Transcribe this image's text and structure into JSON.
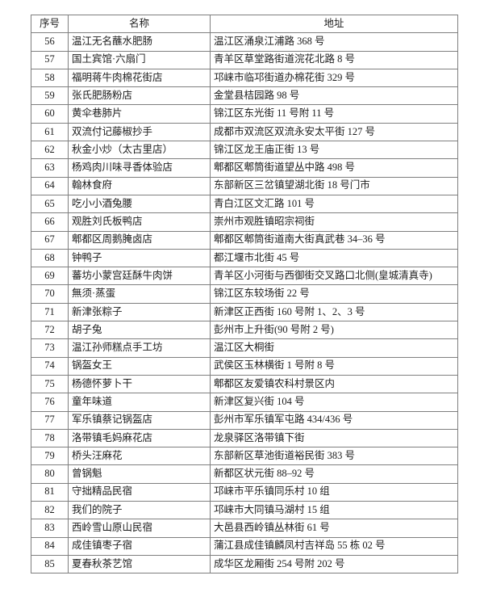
{
  "table": {
    "columns": [
      "序号",
      "名称",
      "地址"
    ],
    "rows": [
      {
        "no": "56",
        "name": "温江无名蘸水肥肠",
        "address": "温江区涌泉江浦路 368 号"
      },
      {
        "no": "57",
        "name": "国土宾馆·六扇门",
        "address": "青羊区草堂路街道浣花北路 8 号"
      },
      {
        "no": "58",
        "name": "福明蒋牛肉棉花街店",
        "address": "邛崃市临邛街道办棉花街 329 号"
      },
      {
        "no": "59",
        "name": "张氏肥肠粉店",
        "address": "金堂县桔园路 98 号"
      },
      {
        "no": "60",
        "name": "黄伞巷肺片",
        "address": "锦江区东光街 11 号附 11 号"
      },
      {
        "no": "61",
        "name": "双流付记藤椒抄手",
        "address": "成都市双流区双流永安太平街 127 号"
      },
      {
        "no": "62",
        "name": "秋金小炒（太古里店）",
        "address": "锦江区龙王庙正街 13 号"
      },
      {
        "no": "63",
        "name": "杨鸡肉川味寻香体验店",
        "address": "郫都区郫筒街道望丛中路 498 号"
      },
      {
        "no": "64",
        "name": "翰林食府",
        "address": "东部新区三岔镇望湖北街 18 号门市"
      },
      {
        "no": "65",
        "name": "吃小小酒兔腰",
        "address": "青白江区文汇路 101 号"
      },
      {
        "no": "66",
        "name": "观胜刘氏板鸭店",
        "address": "崇州市观胜镇昭宗祠街"
      },
      {
        "no": "67",
        "name": "郫都区周鹅腌卤店",
        "address": "郫都区郫筒街道南大街真武巷 34–36 号"
      },
      {
        "no": "68",
        "name": "钟鸭子",
        "address": "都江堰市北街 45 号"
      },
      {
        "no": "69",
        "name": "蕃坊小蒙宫廷酥牛肉饼",
        "address": "青羊区小河街与西御街交叉路口北侧(皇城清真寺)"
      },
      {
        "no": "70",
        "name": "無须·蒸蛋",
        "address": "锦江区东较场街 22 号"
      },
      {
        "no": "71",
        "name": "新津张粽子",
        "address": "新津区正西街 160 号附 1、2、3 号"
      },
      {
        "no": "72",
        "name": "胡子兔",
        "address": "彭州市上升街(90 号附 2 号)"
      },
      {
        "no": "73",
        "name": "温江孙师糕点手工坊",
        "address": "温江区大桐街"
      },
      {
        "no": "74",
        "name": "锅盔女王",
        "address": "武侯区玉林横街 1 号附 8 号"
      },
      {
        "no": "75",
        "name": "杨德怀萝卜干",
        "address": "郫都区友爱镇农科村景区内"
      },
      {
        "no": "76",
        "name": "童年味道",
        "address": "新津区复兴街 104 号"
      },
      {
        "no": "77",
        "name": "军乐镇蔡记锅盔店",
        "address": "彭州市军乐镇军屯路 434/436 号"
      },
      {
        "no": "78",
        "name": "洛带镇毛妈麻花店",
        "address": "龙泉驿区洛带镇下街"
      },
      {
        "no": "79",
        "name": "桥头汪麻花",
        "address": "东部新区草池街道裕民街 383 号"
      },
      {
        "no": "80",
        "name": "曾锅魁",
        "address": "新都区状元街 88–92 号"
      },
      {
        "no": "81",
        "name": "守拙精品民宿",
        "address": "邛崃市平乐镇同乐村 10 组"
      },
      {
        "no": "82",
        "name": "我们的院子",
        "address": "邛崃市大同镇马湖村 15 组"
      },
      {
        "no": "83",
        "name": "西岭雪山原山民宿",
        "address": "大邑县西岭镇丛林街 61 号"
      },
      {
        "no": "84",
        "name": "成佳镇枣子宿",
        "address": "蒲江县成佳镇麟凤村吉祥岛 55 栋 02 号"
      },
      {
        "no": "85",
        "name": "夏春秋茶艺馆",
        "address": "成华区龙厢街 254 号附 202 号"
      }
    ]
  }
}
